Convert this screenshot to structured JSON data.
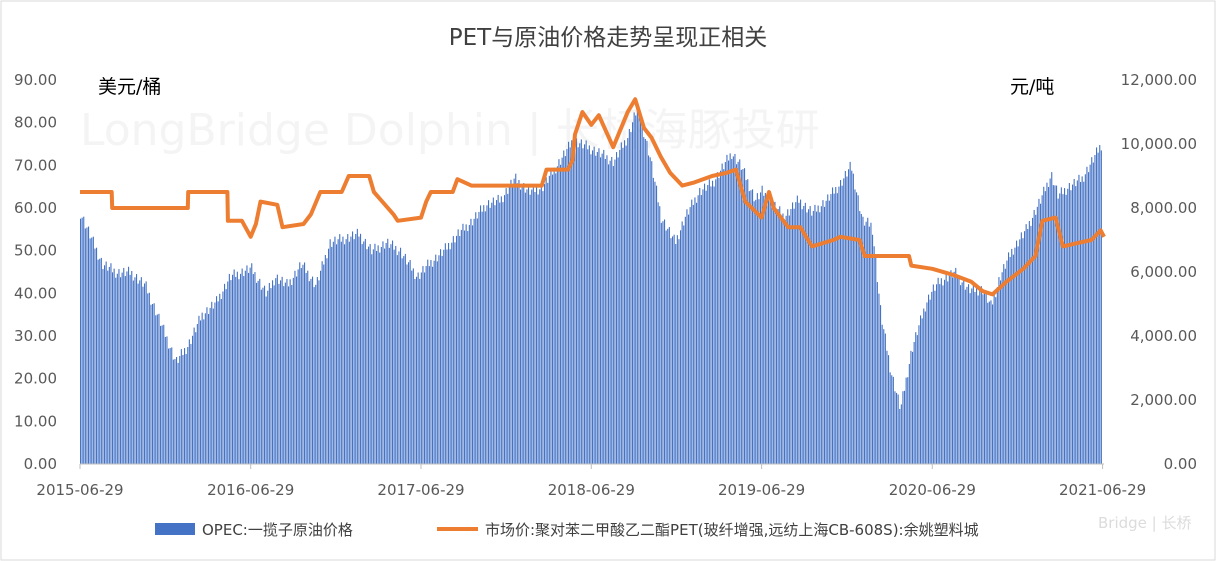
{
  "chart_data": {
    "type": "bar",
    "title": "PET与原油价格走势呈现正相关",
    "left_unit": "美元/桶",
    "right_unit": "元/吨",
    "watermark": "LongBridge Dolphin | 长桥海豚投研",
    "corner_mark": "Bridge | 长桥",
    "x_ticks": [
      "2015-06-29",
      "2016-06-29",
      "2017-06-29",
      "2018-06-29",
      "2019-06-29",
      "2020-06-29",
      "2021-06-29"
    ],
    "y_left": {
      "min": 0,
      "max": 90,
      "ticks": [
        "0.00",
        "10.00",
        "20.00",
        "30.00",
        "40.00",
        "50.00",
        "60.00",
        "70.00",
        "80.00",
        "90.00"
      ]
    },
    "y_right": {
      "min": 0,
      "max": 12000,
      "ticks": [
        "0.00",
        "2,000.00",
        "4,000.00",
        "6,000.00",
        "8,000.00",
        "10,000.00",
        "12,000.00"
      ]
    },
    "x_range": [
      "2015-06-29",
      "2021-07-02"
    ],
    "colors": {
      "bar": "#4472C4",
      "line": "#ED7D31"
    },
    "series": [
      {
        "name": "OPEC:一揽子原油价格",
        "kind": "bar",
        "axis": "left",
        "points": [
          [
            "2015-06-29",
            59
          ],
          [
            "2015-07-15",
            55
          ],
          [
            "2015-08-15",
            47
          ],
          [
            "2015-09-15",
            45
          ],
          [
            "2015-10-15",
            45
          ],
          [
            "2015-11-15",
            42
          ],
          [
            "2015-12-15",
            34
          ],
          [
            "2016-01-20",
            24
          ],
          [
            "2016-02-15",
            28
          ],
          [
            "2016-03-15",
            35
          ],
          [
            "2016-04-15",
            38
          ],
          [
            "2016-05-15",
            44
          ],
          [
            "2016-06-29",
            46
          ],
          [
            "2016-08-01",
            40
          ],
          [
            "2016-08-20",
            44
          ],
          [
            "2016-09-15",
            42
          ],
          [
            "2016-10-15",
            47
          ],
          [
            "2016-11-15",
            42
          ],
          [
            "2016-12-15",
            52
          ],
          [
            "2017-01-15",
            53
          ],
          [
            "2017-02-15",
            54
          ],
          [
            "2017-03-15",
            50
          ],
          [
            "2017-04-15",
            52
          ],
          [
            "2017-05-15",
            50
          ],
          [
            "2017-06-20",
            44
          ],
          [
            "2017-07-15",
            47
          ],
          [
            "2017-08-15",
            50
          ],
          [
            "2017-09-15",
            54
          ],
          [
            "2017-10-15",
            57
          ],
          [
            "2017-11-15",
            61
          ],
          [
            "2017-12-15",
            62
          ],
          [
            "2018-01-15",
            67
          ],
          [
            "2018-02-15",
            64
          ],
          [
            "2018-03-15",
            65
          ],
          [
            "2018-04-15",
            70
          ],
          [
            "2018-05-20",
            76
          ],
          [
            "2018-06-29",
            74
          ],
          [
            "2018-07-15",
            73
          ],
          [
            "2018-08-15",
            71
          ],
          [
            "2018-09-15",
            77
          ],
          [
            "2018-10-05",
            84
          ],
          [
            "2018-11-01",
            72
          ],
          [
            "2018-11-25",
            58
          ],
          [
            "2018-12-25",
            52
          ],
          [
            "2019-01-15",
            58
          ],
          [
            "2019-02-15",
            64
          ],
          [
            "2019-03-15",
            66
          ],
          [
            "2019-04-25",
            73
          ],
          [
            "2019-05-15",
            70
          ],
          [
            "2019-06-15",
            62
          ],
          [
            "2019-06-29",
            64
          ],
          [
            "2019-08-15",
            58
          ],
          [
            "2019-09-15",
            62
          ],
          [
            "2019-10-15",
            59
          ],
          [
            "2019-11-15",
            62
          ],
          [
            "2019-12-15",
            66
          ],
          [
            "2020-01-06",
            70
          ],
          [
            "2020-01-31",
            57
          ],
          [
            "2020-02-20",
            56
          ],
          [
            "2020-03-10",
            35
          ],
          [
            "2020-03-31",
            22
          ],
          [
            "2020-04-21",
            13
          ],
          [
            "2020-05-15",
            27
          ],
          [
            "2020-06-15",
            38
          ],
          [
            "2020-06-29",
            41
          ],
          [
            "2020-07-15",
            43
          ],
          [
            "2020-08-15",
            45
          ],
          [
            "2020-09-15",
            41
          ],
          [
            "2020-10-15",
            41
          ],
          [
            "2020-11-01",
            37
          ],
          [
            "2020-11-20",
            44
          ],
          [
            "2020-12-15",
            50
          ],
          [
            "2021-01-15",
            55
          ],
          [
            "2021-02-15",
            62
          ],
          [
            "2021-03-10",
            68
          ],
          [
            "2021-03-25",
            63
          ],
          [
            "2021-04-15",
            65
          ],
          [
            "2021-05-15",
            67
          ],
          [
            "2021-06-10",
            72
          ],
          [
            "2021-06-25",
            75
          ],
          [
            "2021-07-02",
            75
          ]
        ]
      },
      {
        "name": "市场价:聚对苯二甲酸乙二酯PET(玻纤增强,远纺上海CB-608S):余姚塑料城",
        "kind": "line",
        "axis": "right",
        "points": [
          [
            "2015-06-29",
            8500
          ],
          [
            "2015-09-05",
            8500
          ],
          [
            "2015-09-06",
            8000
          ],
          [
            "2016-02-15",
            8000
          ],
          [
            "2016-02-16",
            8500
          ],
          [
            "2016-05-10",
            8500
          ],
          [
            "2016-05-11",
            7600
          ],
          [
            "2016-06-10",
            7600
          ],
          [
            "2016-06-29",
            7100
          ],
          [
            "2016-07-10",
            7500
          ],
          [
            "2016-07-20",
            8200
          ],
          [
            "2016-08-25",
            8100
          ],
          [
            "2016-09-05",
            7400
          ],
          [
            "2016-10-20",
            7500
          ],
          [
            "2016-11-05",
            7800
          ],
          [
            "2016-11-25",
            8500
          ],
          [
            "2017-01-10",
            8500
          ],
          [
            "2017-01-25",
            9000
          ],
          [
            "2017-03-10",
            9000
          ],
          [
            "2017-03-20",
            8500
          ],
          [
            "2017-05-01",
            7800
          ],
          [
            "2017-05-10",
            7600
          ],
          [
            "2017-06-29",
            7700
          ],
          [
            "2017-07-10",
            8200
          ],
          [
            "2017-07-20",
            8500
          ],
          [
            "2017-09-05",
            8500
          ],
          [
            "2017-09-15",
            8900
          ],
          [
            "2017-10-15",
            8700
          ],
          [
            "2018-03-15",
            8700
          ],
          [
            "2018-03-25",
            9200
          ],
          [
            "2018-05-10",
            9200
          ],
          [
            "2018-05-20",
            9500
          ],
          [
            "2018-05-25",
            10300
          ],
          [
            "2018-06-10",
            11000
          ],
          [
            "2018-06-29",
            10600
          ],
          [
            "2018-07-15",
            10900
          ],
          [
            "2018-08-15",
            9900
          ],
          [
            "2018-09-15",
            11000
          ],
          [
            "2018-10-01",
            11400
          ],
          [
            "2018-10-20",
            10500
          ],
          [
            "2018-11-05",
            10200
          ],
          [
            "2018-11-25",
            9600
          ],
          [
            "2018-12-15",
            9100
          ],
          [
            "2019-01-10",
            8700
          ],
          [
            "2019-02-05",
            8800
          ],
          [
            "2019-03-15",
            9000
          ],
          [
            "2019-04-15",
            9100
          ],
          [
            "2019-05-05",
            9200
          ],
          [
            "2019-05-25",
            8200
          ],
          [
            "2019-06-29",
            7700
          ],
          [
            "2019-07-15",
            8500
          ],
          [
            "2019-07-25",
            8000
          ],
          [
            "2019-08-25",
            7400
          ],
          [
            "2019-09-20",
            7400
          ],
          [
            "2019-10-15",
            6800
          ],
          [
            "2019-11-30",
            7000
          ],
          [
            "2019-12-15",
            7100
          ],
          [
            "2020-01-25",
            7000
          ],
          [
            "2020-02-05",
            6500
          ],
          [
            "2020-05-10",
            6500
          ],
          [
            "2020-05-15",
            6200
          ],
          [
            "2020-06-29",
            6100
          ],
          [
            "2020-08-15",
            5900
          ],
          [
            "2020-09-20",
            5700
          ],
          [
            "2020-10-15",
            5400
          ],
          [
            "2020-11-05",
            5300
          ],
          [
            "2020-12-05",
            5700
          ],
          [
            "2021-01-10",
            6100
          ],
          [
            "2021-02-05",
            6500
          ],
          [
            "2021-02-20",
            7600
          ],
          [
            "2021-03-20",
            7700
          ],
          [
            "2021-04-05",
            6800
          ],
          [
            "2021-05-05",
            6900
          ],
          [
            "2021-06-05",
            7000
          ],
          [
            "2021-06-25",
            7300
          ],
          [
            "2021-07-02",
            7100
          ]
        ]
      }
    ]
  }
}
